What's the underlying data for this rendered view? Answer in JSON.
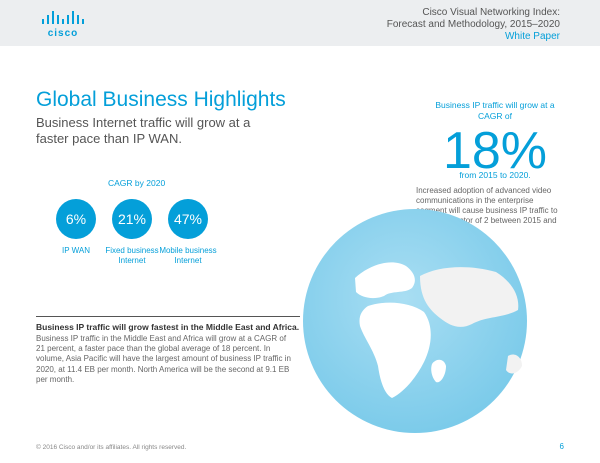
{
  "header": {
    "logo_text": "cisco",
    "line1": "Cisco Visual Networking Index:",
    "line2": "Forecast and Methodology, 2015–2020",
    "doc_type": "White Paper"
  },
  "title": "Global Business Highlights",
  "subtitle": "Business Internet traffic will grow at a faster pace than IP WAN.",
  "stat": {
    "intro": "Business IP traffic will grow at a CAGR of",
    "value": "18%",
    "period": "from 2015 to 2020.",
    "description": "Increased adoption of advanced video communications in the enterprise segment will cause business IP traffic to grow by a factor of 2 between 2015 and 2020."
  },
  "cagr": {
    "label": "CAGR by 2020",
    "items": [
      {
        "value": "6%",
        "label": "IP WAN"
      },
      {
        "value": "21%",
        "label": "Fixed business Internet"
      },
      {
        "value": "47%",
        "label": "Mobile business Internet"
      }
    ]
  },
  "region": {
    "heading": "Business IP traffic will grow fastest in the Middle East and Africa.",
    "body": "Business IP traffic in the Middle East and Africa will grow at a CAGR of 21 percent, a faster pace than the global average of 18 percent. In volume, Asia Pacific will have the largest amount of business IP traffic in 2020, at 11.4 EB per month. North America will be the second at 9.1 EB per month."
  },
  "footer": {
    "copyright": "© 2016 Cisco and/or its affiliates. All rights reserved.",
    "page": "6"
  },
  "colors": {
    "accent": "#049fd9",
    "header_bg": "#eceef0",
    "globe": "#8dd3ee"
  }
}
